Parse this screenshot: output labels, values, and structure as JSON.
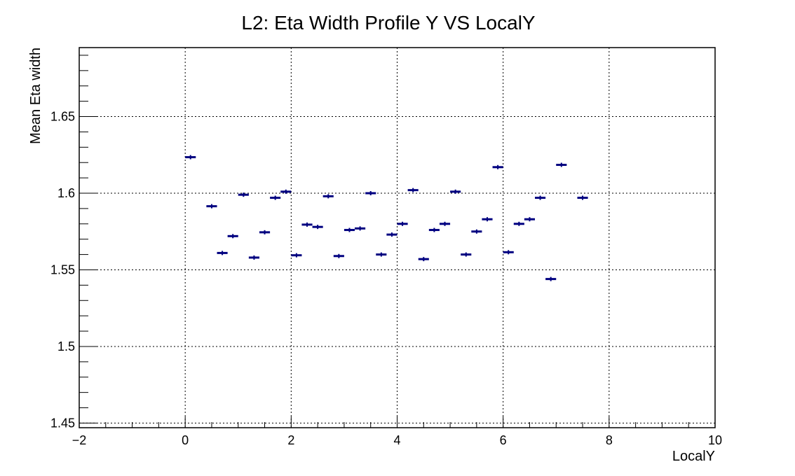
{
  "chart_data": {
    "type": "scatter",
    "title": "L2: Eta Width Profile Y VS LocalY",
    "xlabel": "LocalY",
    "ylabel": "Mean Eta width",
    "xlim": [
      -2,
      10
    ],
    "ylim": [
      1.447,
      1.695
    ],
    "xticks": [
      -2,
      0,
      2,
      4,
      6,
      8,
      10
    ],
    "xtick_labels": [
      "−2",
      "0",
      "2",
      "4",
      "6",
      "8",
      "10"
    ],
    "yticks": [
      1.45,
      1.5,
      1.55,
      1.6,
      1.65
    ],
    "ytick_labels": [
      "1.45",
      "1.5",
      "1.55",
      "1.6",
      "1.65"
    ],
    "grid": true,
    "legend": "none",
    "marker_color": "#000080",
    "bin_width": 0.2,
    "series": [
      {
        "x": [
          0.1,
          0.5,
          0.7,
          0.9,
          1.1,
          1.3,
          1.5,
          1.7,
          1.9,
          2.1,
          2.3,
          2.5,
          2.7,
          2.9,
          3.1,
          3.3,
          3.5,
          3.7,
          3.9,
          4.1,
          4.3,
          4.5,
          4.7,
          4.9,
          5.1,
          5.3,
          5.5,
          5.7,
          5.9,
          6.1,
          6.3,
          6.5,
          6.7,
          6.9,
          7.1,
          7.5
        ],
        "y": [
          1.6235,
          1.5915,
          1.561,
          1.572,
          1.599,
          1.558,
          1.5745,
          1.597,
          1.601,
          1.5595,
          1.5795,
          1.578,
          1.598,
          1.559,
          1.576,
          1.577,
          1.6,
          1.56,
          1.573,
          1.58,
          1.602,
          1.557,
          1.576,
          1.58,
          1.601,
          1.56,
          1.575,
          1.583,
          1.617,
          1.5615,
          1.58,
          1.583,
          1.597,
          1.544,
          1.6185,
          1.597
        ]
      }
    ]
  }
}
